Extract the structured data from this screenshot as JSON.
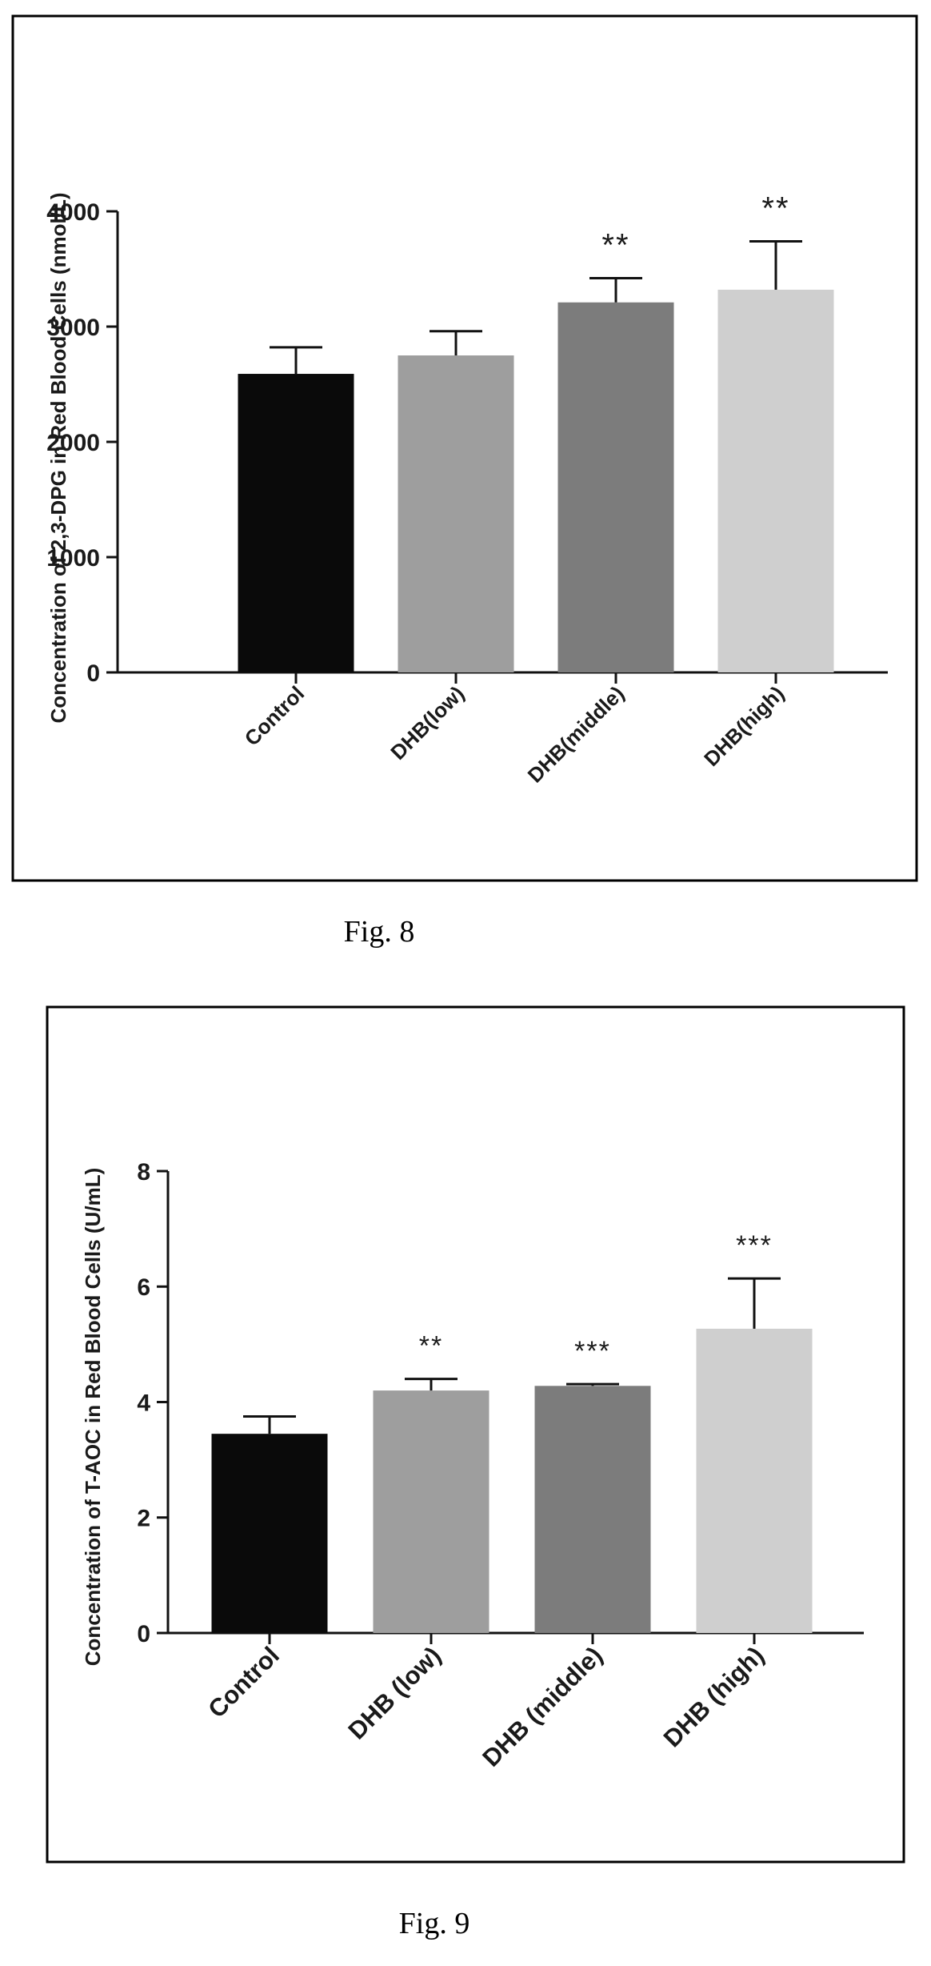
{
  "chart_data": [
    {
      "type": "bar",
      "caption": "Fig. 8",
      "ylabel": "Concentration of 2,3-DPG in Red Blood Cells (nmol/L)",
      "categories": [
        "Control",
        "DHB(low)",
        "DHB(middle)",
        "DHB(high)"
      ],
      "values": [
        2590,
        2750,
        3210,
        3320
      ],
      "errors": [
        230,
        210,
        210,
        420
      ],
      "significance": [
        "",
        "",
        "**",
        "**"
      ],
      "yticks": [
        "0",
        "1000",
        "2000",
        "3000",
        "4000"
      ],
      "ylim": [
        0,
        4000
      ],
      "colors": [
        "#0a0a0a",
        "#9e9e9e",
        "#7c7c7c",
        "#cfcfcf"
      ],
      "legend": "none",
      "grid": false
    },
    {
      "type": "bar",
      "caption": "Fig. 9",
      "ylabel": "Concentration of T-AOC in Red Blood Cells (U/mL)",
      "categories": [
        "Control",
        "DHB (low)",
        "DHB (middle)",
        "DHB (high)"
      ],
      "values": [
        3.45,
        4.2,
        4.28,
        5.27
      ],
      "errors": [
        0.3,
        0.2,
        0.03,
        0.87
      ],
      "significance": [
        "",
        "**",
        "***",
        "***"
      ],
      "yticks": [
        "0",
        "2",
        "4",
        "6",
        "8"
      ],
      "ylim": [
        0,
        8
      ],
      "colors": [
        "#0a0a0a",
        "#9e9e9e",
        "#7c7c7c",
        "#cfcfcf"
      ],
      "legend": "none",
      "grid": false
    }
  ]
}
